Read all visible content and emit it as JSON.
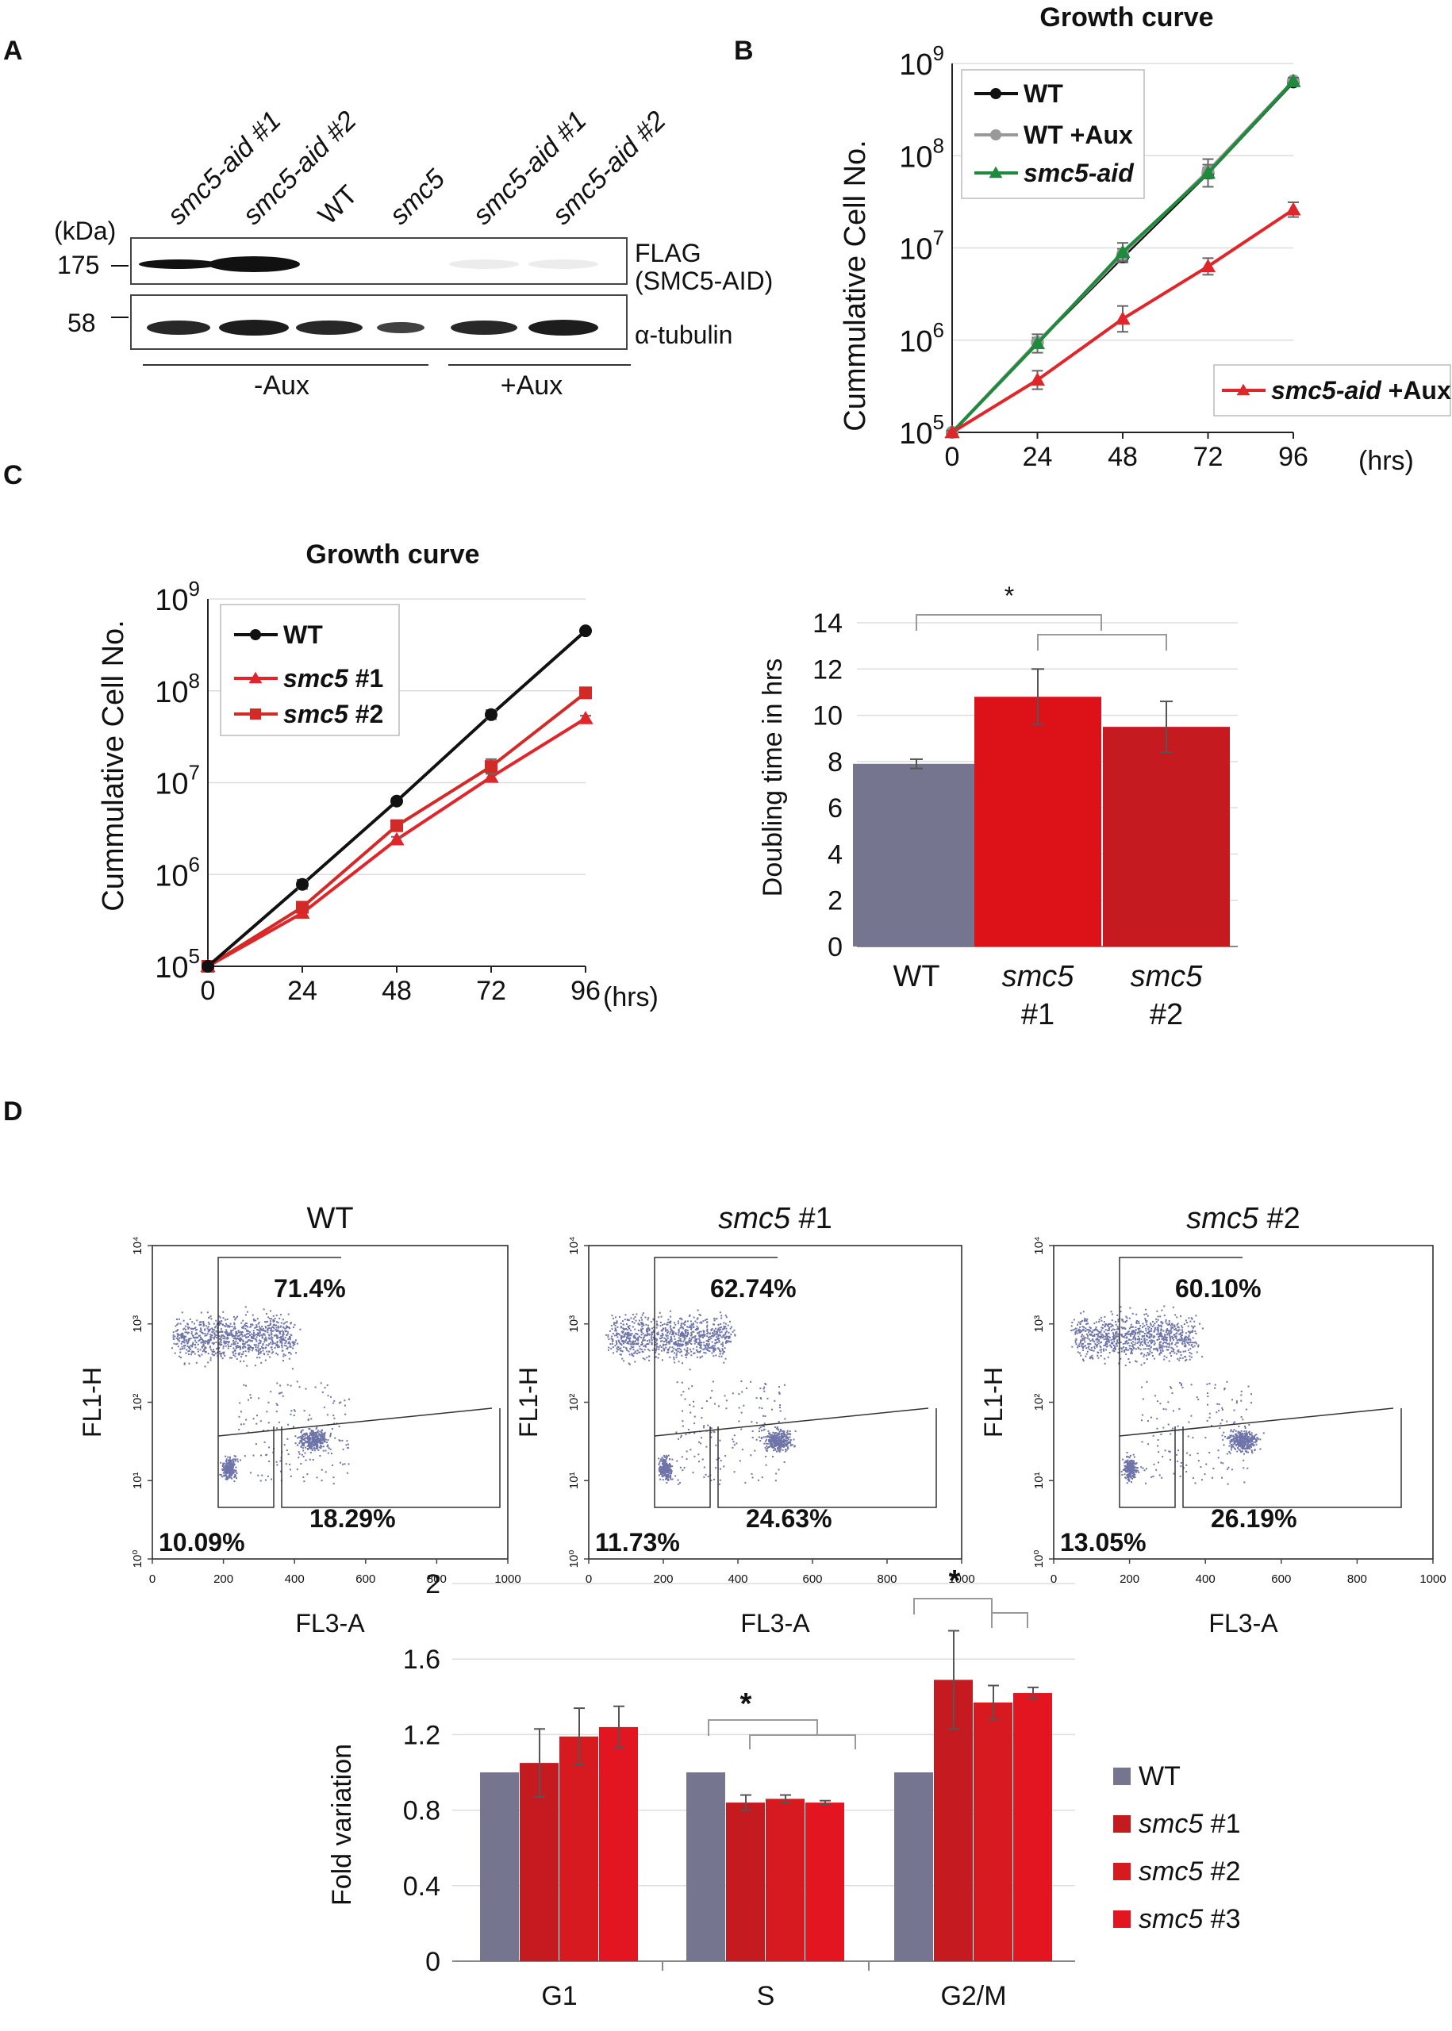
{
  "panels": {
    "a": "A",
    "b": "B",
    "c": "C",
    "d": "D"
  },
  "blot": {
    "lanes": [
      "smc5-aid #1",
      "smc5-aid #2",
      "WT",
      "smc5",
      "smc5-aid #1",
      "smc5-aid #2"
    ],
    "lane_italic": [
      true,
      true,
      false,
      true,
      true,
      true
    ],
    "kda_label": "(kDa)",
    "markers": [
      "175",
      "58"
    ],
    "band_labels": {
      "flag_line1": "FLAG",
      "flag_line2": "(SMC5-AID)",
      "tubulin": "α-tubulin"
    },
    "conditions": [
      "-Aux",
      "+Aux"
    ]
  },
  "chart_data": [
    {
      "id": "B",
      "type": "line",
      "title": "Growth curve",
      "ylabel": "Cummulative Cell No.",
      "xunit": "(hrs)",
      "yscale": "log",
      "x": [
        0,
        24,
        48,
        72,
        96
      ],
      "ylim": [
        100000,
        1000000000
      ],
      "series": [
        {
          "name": "WT",
          "color": "#111111",
          "marker": "circle",
          "values": [
            100000,
            950000,
            8000000,
            65000000,
            630000000
          ],
          "err": [
            0.02,
            0.05,
            0.06,
            0.06,
            0.03
          ]
        },
        {
          "name": "WT +Aux",
          "color": "#999999",
          "marker": "circle",
          "values": [
            100000,
            950000,
            8500000,
            68000000,
            650000000
          ],
          "err": [
            0.02,
            0.05,
            0.06,
            0.07,
            0.03
          ]
        },
        {
          "name": "smc5-aid",
          "color": "#1f8a3c",
          "marker": "triangle",
          "values": [
            100000,
            920000,
            9000000,
            65000000,
            640000000
          ],
          "err": [
            0.02,
            0.1,
            0.1,
            0.15,
            0.04
          ]
        },
        {
          "name": "smc5-aid +Aux",
          "color": "#e0262a",
          "marker": "triangle",
          "values": [
            100000,
            370000,
            1700000,
            6300000,
            26000000
          ],
          "err": [
            0.02,
            0.1,
            0.14,
            0.09,
            0.08
          ]
        }
      ]
    },
    {
      "id": "C-growth",
      "type": "line",
      "title": "Growth curve",
      "ylabel": "Cummulative Cell No.",
      "xunit": "(hrs)",
      "yscale": "log",
      "x": [
        0,
        24,
        48,
        72,
        96
      ],
      "ylim": [
        100000,
        1000000000
      ],
      "series": [
        {
          "name": "smc5 #1",
          "color": "#e0262a",
          "marker": "triangle",
          "values": [
            100000,
            380000,
            2400000,
            11500000,
            50000000
          ],
          "err": [
            0.02,
            0.03,
            0.03,
            0.04,
            0.03
          ]
        },
        {
          "name": "smc5 #2",
          "color": "#d42a27",
          "marker": "square",
          "values": [
            100000,
            440000,
            3400000,
            15000000,
            95000000
          ],
          "err": [
            0.02,
            0.03,
            0.04,
            0.08,
            0.05
          ]
        },
        {
          "name": "WT",
          "color": "#111111",
          "marker": "circle",
          "values": [
            100000,
            780000,
            6300000,
            55000000,
            450000000
          ],
          "err": [
            0.02,
            0.05,
            0.03,
            0.05,
            0.02
          ]
        }
      ]
    },
    {
      "id": "C-doubling",
      "type": "bar",
      "ylabel": "Doubling time in hrs",
      "ylim": [
        0,
        14
      ],
      "ticks": [
        0,
        2,
        4,
        6,
        8,
        10,
        12,
        14
      ],
      "categories": [
        {
          "l1": "WT",
          "l2": "",
          "italic": false
        },
        {
          "l1": "smc5",
          "l2": "#1",
          "italic": true
        },
        {
          "l1": "smc5",
          "l2": "#2",
          "italic": true
        }
      ],
      "values": [
        7.9,
        10.8,
        9.5
      ],
      "err": [
        0.2,
        1.2,
        1.1
      ],
      "colors": [
        "#75758f",
        "#dd1219",
        "#c41a20"
      ],
      "sig": "*"
    },
    {
      "id": "D-fold",
      "type": "bar",
      "ylabel": "Fold variation",
      "ylim": [
        0,
        2
      ],
      "ticks": [
        "0",
        "0.4",
        "0.8",
        "1.2",
        "1.6",
        "2"
      ],
      "categories": [
        "G1",
        "S",
        "G2/M"
      ],
      "series": [
        {
          "name": "WT",
          "name_rest": "",
          "color": "#75758f",
          "values": [
            1.0,
            1.0,
            1.0
          ],
          "err": [
            0.005,
            0.005,
            0.005
          ]
        },
        {
          "name": "smc5",
          "name_rest": " #1",
          "color": "#c41a20",
          "values": [
            1.05,
            0.84,
            1.49
          ],
          "err": [
            0.18,
            0.04,
            0.26
          ]
        },
        {
          "name": "smc5",
          "name_rest": " #2",
          "color": "#d71a20",
          "values": [
            1.19,
            0.86,
            1.37
          ],
          "err": [
            0.15,
            0.02,
            0.09
          ]
        },
        {
          "name": "smc5",
          "name_rest": " #3",
          "color": "#e31520",
          "values": [
            1.24,
            0.84,
            1.42
          ],
          "err": [
            0.11,
            0.01,
            0.03
          ]
        }
      ],
      "sig": [
        "*",
        "*"
      ]
    }
  ],
  "flow": {
    "xlabel": "FL3-A",
    "ylabel": "FL1-H",
    "xticks": [
      "0",
      "200",
      "400",
      "600",
      "800",
      "1000"
    ],
    "yticks": [
      "10⁰",
      "10¹",
      "10²",
      "10³",
      "10⁴"
    ],
    "plots": [
      {
        "title": "WT",
        "title_rest": "",
        "italic": false,
        "s_g2": "71.4%",
        "g1": "10.09%",
        "g2": "18.29%"
      },
      {
        "title": "smc5",
        "title_rest": " #1",
        "italic": true,
        "s_g2": "62.74%",
        "g1": "11.73%",
        "g2": "24.63%"
      },
      {
        "title": "smc5",
        "title_rest": " #2",
        "italic": true,
        "s_g2": "60.10%",
        "g1": "13.05%",
        "g2": "26.19%"
      }
    ],
    "dot_color": "#6e74a8"
  }
}
